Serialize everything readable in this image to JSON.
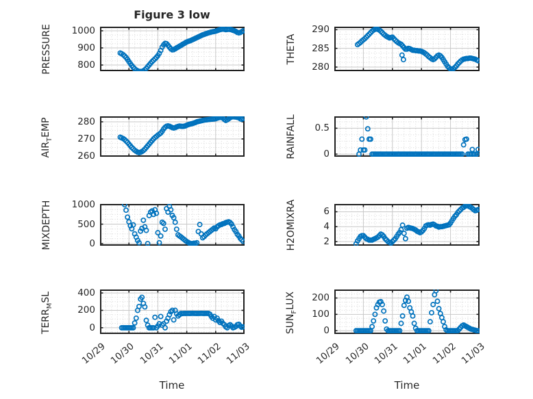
{
  "chart_data": {
    "type": "scatter",
    "title": "Figure 3 low",
    "xlabel": "Time",
    "marker_color": "#0072BD",
    "axis_color": "#1f1f1f",
    "major_grid_color": "#c8c8c8",
    "minor_grid_color": "#d6d6d6",
    "grid": "on, with dotted minor grid",
    "legend_position": "none",
    "x_tick_labels": [
      "10/29",
      "10/30",
      "10/31",
      "11/01",
      "11/02",
      "11/03"
    ],
    "xlim_days": [
      0,
      5
    ],
    "subplots": [
      {
        "name": "PRESSURE",
        "row": 0,
        "col": 0,
        "ylabel_parts": [
          {
            "t": "PRESSURE"
          }
        ],
        "ylim": [
          764,
          1024
        ],
        "yticks": [
          800,
          900,
          1000
        ],
        "t0": 0.7,
        "dt": 0.05,
        "values": [
          870,
          866,
          860,
          853,
          844,
          833,
          820,
          808,
          797,
          787,
          778,
          771,
          766,
          763,
          762,
          763,
          766,
          772,
          780,
          790,
          800,
          810,
          820,
          828,
          836,
          845,
          855,
          868,
          885,
          905,
          918,
          927,
          925,
          916,
          905,
          895,
          889,
          890,
          895,
          900,
          905,
          910,
          915,
          920,
          925,
          930,
          935,
          938,
          941,
          944,
          948,
          952,
          956,
          960,
          964,
          968,
          972,
          976,
          979,
          982,
          985,
          988,
          990,
          993,
          995,
          996,
          998,
          1001,
          1004,
          1007,
          1009,
          1010,
          1009,
          1007,
          1008,
          1009,
          1008,
          1006,
          1003,
          1000,
          996,
          991,
          988,
          990,
          995,
          1000
        ]
      },
      {
        "name": "THETA",
        "row": 0,
        "col": 1,
        "ylabel_parts": [
          {
            "t": "THETA"
          }
        ],
        "ylim": [
          278.9,
          290.8
        ],
        "yticks": [
          280,
          285,
          290
        ],
        "t0": 0.8,
        "dt": 0.05,
        "values": [
          286.0,
          286.3,
          286.6,
          287.0,
          287.3,
          287.6,
          288.0,
          288.4,
          288.8,
          289.2,
          289.6,
          289.9,
          290.1,
          290.2,
          290.1,
          289.9,
          289.6,
          289.2,
          288.8,
          288.5,
          288.2,
          288.0,
          287.8,
          287.9,
          288.0,
          287.6,
          287.2,
          286.8,
          286.5,
          286.3,
          286.1,
          285.7,
          285.2,
          284.8,
          284.8,
          285.0,
          284.9,
          284.7,
          284.5,
          284.5,
          284.4,
          284.4,
          284.3,
          284.3,
          284.2,
          284.0,
          283.8,
          283.5,
          283.2,
          282.8,
          282.5,
          282.2,
          282.0,
          282.2,
          282.6,
          283.0,
          283.2,
          283.0,
          282.6,
          282.0,
          281.4,
          280.8,
          280.2,
          279.8,
          279.5,
          279.4,
          279.6,
          279.9,
          280.3,
          280.8,
          281.2,
          281.6,
          281.9,
          282.1,
          282.2,
          282.3,
          282.3,
          282.4,
          282.4,
          282.3,
          282.2,
          282.1,
          281.9,
          281.7
        ],
        "extra_points": [
          [
            2.33,
            283.2
          ],
          [
            2.38,
            282.0
          ]
        ]
      },
      {
        "name": "AIR_TEMP",
        "row": 1,
        "col": 0,
        "ylabel_parts": [
          {
            "t": "AIR"
          },
          {
            "t": "T",
            "sub": true
          },
          {
            "t": "EMP"
          }
        ],
        "ylim": [
          259.6,
          283.2
        ],
        "yticks": [
          260,
          270,
          280
        ],
        "t0": 0.7,
        "dt": 0.05,
        "values": [
          271.0,
          270.6,
          270.2,
          269.6,
          268.8,
          268.0,
          267.0,
          266.0,
          265.0,
          264.2,
          263.4,
          262.8,
          262.3,
          262.0,
          262.2,
          262.6,
          263.2,
          264.0,
          265.0,
          266.0,
          267.0,
          268.0,
          269.0,
          270.0,
          270.8,
          271.5,
          272.2,
          272.8,
          273.4,
          274.5,
          275.8,
          276.8,
          277.4,
          277.6,
          277.4,
          277.0,
          276.6,
          276.4,
          276.6,
          277.0,
          277.3,
          277.5,
          277.4,
          277.3,
          277.4,
          277.6,
          278.0,
          278.3,
          278.6,
          278.8,
          279.0,
          279.3,
          279.6,
          280.0,
          280.2,
          280.4,
          280.6,
          280.8,
          281.0,
          281.1,
          281.2,
          281.3,
          281.4,
          281.5,
          281.6,
          281.7,
          281.8,
          282.1,
          282.4,
          282.6,
          282.5,
          282.2,
          281.4,
          280.8,
          281.2,
          281.8,
          282.4,
          282.8,
          283.0,
          282.9,
          282.8,
          282.6,
          282.4,
          281.8,
          281.5,
          282.0
        ]
      },
      {
        "name": "RAINFALL",
        "row": 1,
        "col": 1,
        "ylabel_parts": [
          {
            "t": "RAINFALL"
          }
        ],
        "ylim": [
          -0.05,
          0.73
        ],
        "yticks": [
          0,
          0.5
        ],
        "t0": 0.85,
        "dt": 0.05,
        "values": [
          0,
          0.08,
          0.29,
          0.08,
          0.08,
          0.72,
          0.49,
          0.29,
          0.29,
          0,
          0,
          0,
          0,
          0,
          0,
          0,
          0,
          0,
          0,
          0,
          0,
          0,
          0,
          0,
          0,
          0,
          0,
          0,
          0,
          0,
          0,
          0,
          0,
          0,
          0,
          0,
          0,
          0,
          0,
          0,
          0,
          0,
          0,
          0,
          0,
          0,
          0,
          0,
          0,
          0,
          0,
          0,
          0,
          0,
          0,
          0,
          0,
          0,
          0,
          0,
          0,
          0,
          0,
          0,
          0,
          0,
          0,
          0,
          0,
          0,
          0,
          0,
          0.18,
          0.28,
          0.29,
          0,
          0,
          0,
          0.09,
          0,
          0,
          0,
          0.09
        ]
      },
      {
        "name": "MIXDEPTH",
        "row": 2,
        "col": 0,
        "ylabel_parts": [
          {
            "t": "MIXDEPTH"
          }
        ],
        "ylim": [
          -55,
          1020
        ],
        "yticks": [
          0,
          500,
          1000
        ],
        "t0": 0.85,
        "dt": 0.05,
        "values": [
          1000,
          860,
          680,
          560,
          460,
          380,
          480,
          250,
          165,
          80,
          20,
          320,
          390,
          600,
          430,
          340,
          0,
          720,
          810,
          840,
          750,
          870,
          780,
          280,
          20,
          195,
          550,
          520,
          370,
          900,
          810,
          960,
          870,
          725,
          665,
          550,
          370,
          225,
          195,
          170,
          140,
          110,
          80,
          50,
          30,
          10,
          0,
          0,
          10,
          0,
          20,
          310,
          490,
          250,
          150,
          180,
          220,
          250,
          280,
          310,
          340,
          370,
          400,
          380,
          430,
          460,
          480,
          490,
          510,
          520,
          540,
          550,
          560,
          540,
          500,
          430,
          360,
          310,
          240,
          195,
          135,
          95,
          60
        ]
      },
      {
        "name": "H2OMIXRA",
        "row": 2,
        "col": 1,
        "ylabel_parts": [
          {
            "t": "H2OMIXRA"
          }
        ],
        "ylim": [
          1.45,
          7.05
        ],
        "yticks": [
          2,
          4,
          6
        ],
        "t0": 0.75,
        "dt": 0.05,
        "values": [
          1.7,
          2.1,
          2.4,
          2.7,
          2.8,
          2.8,
          2.6,
          2.4,
          2.3,
          2.2,
          2.2,
          2.2,
          2.3,
          2.4,
          2.5,
          2.6,
          2.8,
          3.0,
          2.9,
          2.7,
          2.4,
          2.2,
          2.0,
          1.9,
          1.8,
          2.0,
          2.2,
          2.4,
          2.7,
          3.0,
          3.25,
          3.6,
          4.2,
          3.1,
          2.4,
          3.8,
          3.9,
          3.85,
          3.8,
          3.75,
          3.65,
          3.55,
          3.4,
          3.3,
          3.2,
          3.3,
          3.5,
          3.75,
          4.1,
          4.2,
          4.25,
          4.2,
          4.3,
          4.35,
          4.25,
          4.1,
          4.05,
          3.95,
          4.0,
          4.0,
          4.05,
          4.1,
          4.15,
          4.2,
          4.25,
          4.5,
          4.8,
          5.1,
          5.4,
          5.6,
          5.9,
          6.1,
          6.3,
          6.5,
          6.6,
          6.75,
          6.8,
          6.85,
          6.7,
          6.6,
          6.45,
          6.3,
          6.15,
          6.2,
          6.3
        ]
      },
      {
        "name": "TERR_MSL",
        "row": 3,
        "col": 0,
        "ylabel_parts": [
          {
            "t": "TERR"
          },
          {
            "t": "M",
            "sub": true
          },
          {
            "t": "SL"
          }
        ],
        "ylim": [
          -72,
          440
        ],
        "yticks": [
          0,
          200,
          400
        ],
        "t0": 0.75,
        "dt": 0.05,
        "values": [
          0,
          0,
          0,
          0,
          0,
          0,
          0,
          0,
          0,
          55,
          110,
          200,
          245,
          330,
          350,
          280,
          240,
          85,
          30,
          0,
          0,
          0,
          0,
          120,
          0,
          20,
          45,
          130,
          30,
          45,
          0,
          75,
          110,
          150,
          185,
          200,
          90,
          200,
          160,
          135,
          150,
          165,
          163,
          165,
          164,
          165,
          165,
          164,
          165,
          166,
          165,
          165,
          164,
          165,
          165,
          166,
          165,
          164,
          165,
          165,
          165,
          155,
          130,
          110,
          130,
          90,
          110,
          80,
          60,
          75,
          50,
          35,
          10,
          0,
          25,
          35,
          20,
          0,
          5,
          15,
          35,
          40,
          20,
          5,
          10
        ]
      },
      {
        "name": "SUN_FLUX",
        "row": 3,
        "col": 1,
        "ylabel_parts": [
          {
            "t": "SUN"
          },
          {
            "t": "F",
            "sub": true
          },
          {
            "t": "LUX"
          }
        ],
        "ylim": [
          -20,
          252
        ],
        "yticks": [
          0,
          100,
          200
        ],
        "t0": 0.75,
        "dt": 0.05,
        "values": [
          0,
          0,
          0,
          0,
          0,
          0,
          0,
          0,
          0,
          0,
          0,
          25,
          60,
          100,
          140,
          160,
          175,
          178,
          160,
          120,
          60,
          10,
          0,
          0,
          0,
          0,
          0,
          0,
          0,
          0,
          0,
          45,
          90,
          155,
          185,
          205,
          180,
          140,
          115,
          90,
          45,
          15,
          0,
          0,
          0,
          0,
          0,
          0,
          0,
          0,
          0,
          55,
          110,
          160,
          220,
          245,
          180,
          135,
          105,
          80,
          55,
          25,
          5,
          0,
          0,
          0,
          0,
          0,
          0,
          0,
          0,
          10,
          20,
          30,
          35,
          30,
          25,
          20,
          15,
          10,
          8,
          5,
          3,
          0,
          0
        ]
      }
    ]
  }
}
